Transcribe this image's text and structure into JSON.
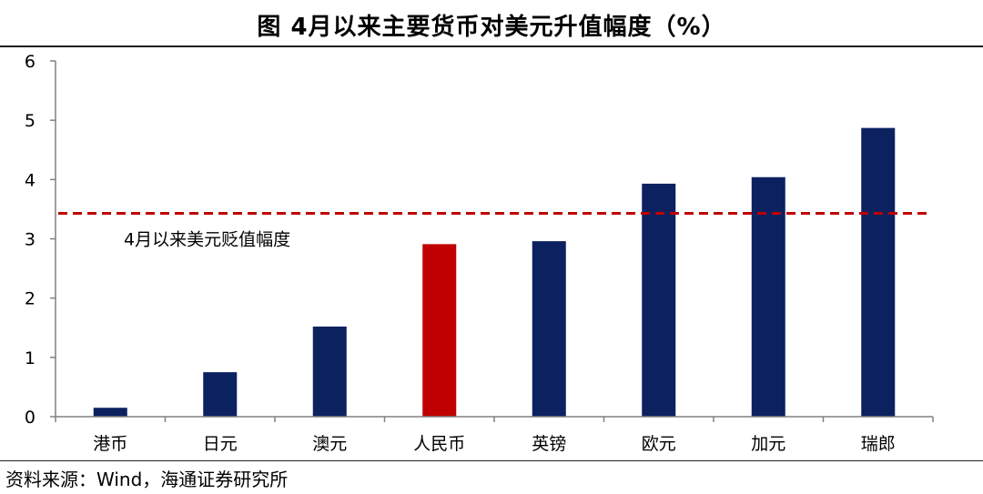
{
  "title": "图 4月以来主要货币对美元升值幅度（%）",
  "source": "资料来源：Wind，海通证券研究所",
  "colors": {
    "default_bar": "#0c2160",
    "highlight_bar": "#c00000",
    "reference_line": "#c00000",
    "axis": "#808080"
  },
  "chart_data": {
    "type": "bar",
    "title": "图 4月以来主要货币对美元升值幅度（%）",
    "xlabel": "",
    "ylabel": "",
    "ylim": [
      0,
      6
    ],
    "yticks": [
      "0",
      "1",
      "2",
      "3",
      "4",
      "5",
      "6"
    ],
    "grid": false,
    "categories": [
      "港币",
      "日元",
      "澳元",
      "人民币",
      "英镑",
      "欧元",
      "加元",
      "瑞郎"
    ],
    "values": [
      0.15,
      0.75,
      1.52,
      2.91,
      2.96,
      3.93,
      4.04,
      4.87
    ],
    "highlight": "人民币",
    "reference_line": {
      "value": 3.43,
      "label": "4月以来美元贬值幅度",
      "style": "dashed"
    }
  }
}
